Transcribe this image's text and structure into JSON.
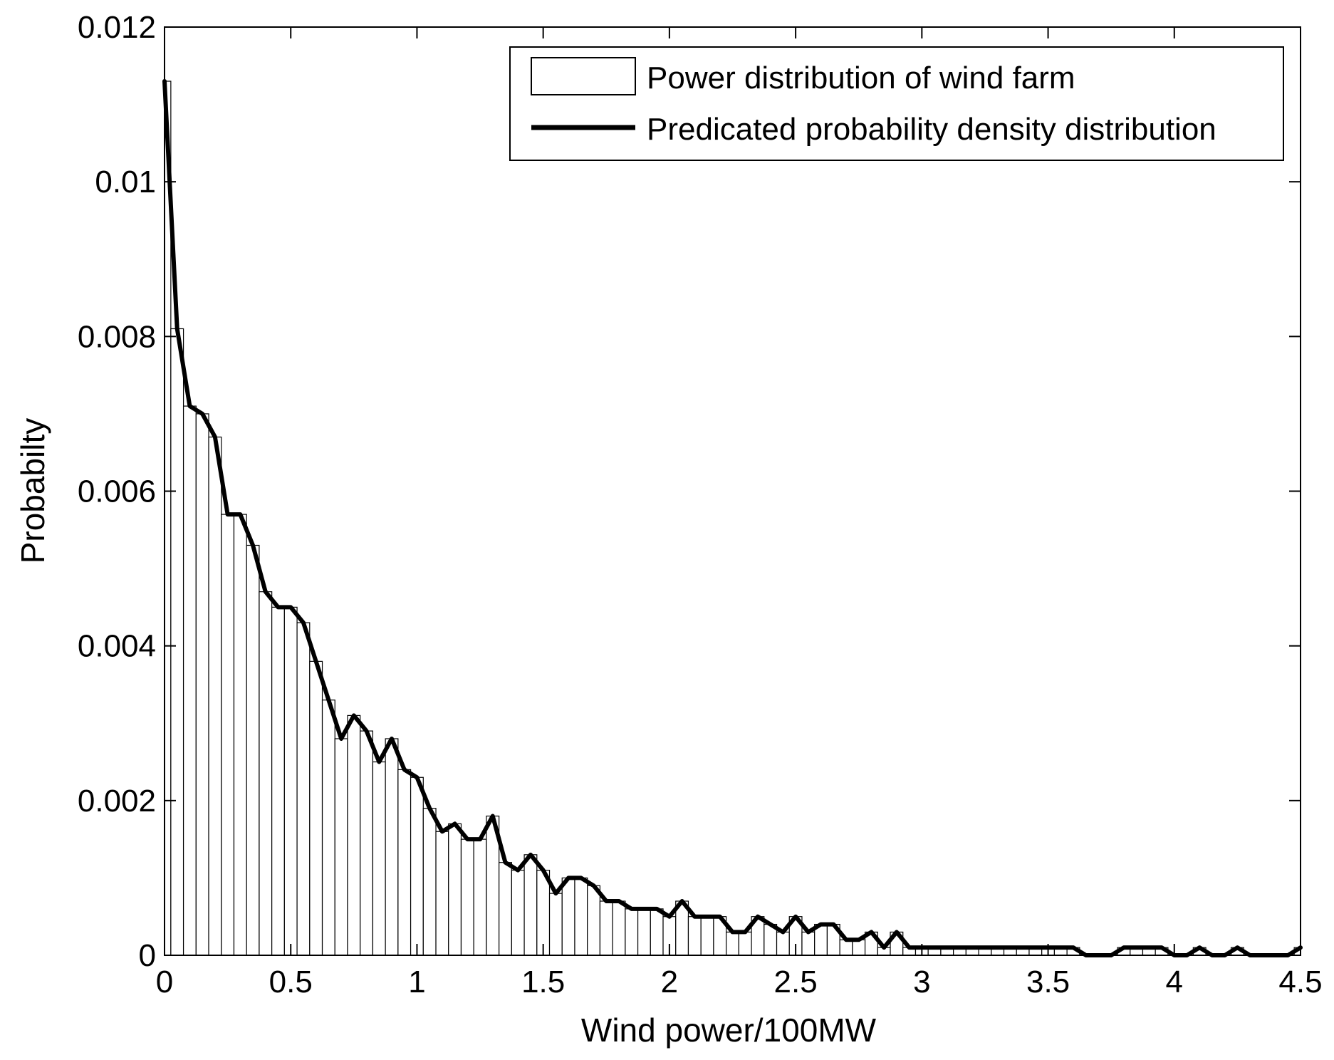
{
  "chart_data": {
    "type": "bar",
    "xlabel": "Wind power/100MW",
    "ylabel": "Probabilty",
    "xlim": [
      0,
      4.5
    ],
    "ylim": [
      0,
      0.012
    ],
    "grid": false,
    "legend_position": "top-right",
    "x_ticks": [
      {
        "value": 0,
        "label": "0"
      },
      {
        "value": 0.5,
        "label": "0.5"
      },
      {
        "value": 1,
        "label": "1"
      },
      {
        "value": 1.5,
        "label": "1.5"
      },
      {
        "value": 2,
        "label": "2"
      },
      {
        "value": 2.5,
        "label": "2.5"
      },
      {
        "value": 3,
        "label": "3"
      },
      {
        "value": 3.5,
        "label": "3.5"
      },
      {
        "value": 4,
        "label": "4"
      },
      {
        "value": 4.5,
        "label": "4.5"
      }
    ],
    "y_ticks": [
      {
        "value": 0,
        "label": "0"
      },
      {
        "value": 0.002,
        "label": "0.002"
      },
      {
        "value": 0.004,
        "label": "0.004"
      },
      {
        "value": 0.006,
        "label": "0.006"
      },
      {
        "value": 0.008,
        "label": "0.008"
      },
      {
        "value": 0.01,
        "label": "0.01"
      },
      {
        "value": 0.012,
        "label": "0.012"
      }
    ],
    "bar_width": 0.05,
    "series": [
      {
        "name": "Power distribution of wind farm",
        "type": "bar",
        "color": "#000000",
        "x": [
          0,
          0.05,
          0.1,
          0.15,
          0.2,
          0.25,
          0.3,
          0.35,
          0.4,
          0.45,
          0.5,
          0.55,
          0.6,
          0.65,
          0.7,
          0.75,
          0.8,
          0.85,
          0.9,
          0.95,
          1.0,
          1.05,
          1.1,
          1.15,
          1.2,
          1.25,
          1.3,
          1.35,
          1.4,
          1.45,
          1.5,
          1.55,
          1.6,
          1.65,
          1.7,
          1.75,
          1.8,
          1.85,
          1.9,
          1.95,
          2.0,
          2.05,
          2.1,
          2.15,
          2.2,
          2.25,
          2.3,
          2.35,
          2.4,
          2.45,
          2.5,
          2.55,
          2.6,
          2.65,
          2.7,
          2.75,
          2.8,
          2.85,
          2.9,
          2.95,
          3.0,
          3.05,
          3.1,
          3.15,
          3.2,
          3.25,
          3.3,
          3.35,
          3.4,
          3.45,
          3.5,
          3.55,
          3.6,
          3.65,
          3.7,
          3.75,
          3.8,
          3.85,
          3.9,
          3.95,
          4.0,
          4.05,
          4.1,
          4.15,
          4.2,
          4.25,
          4.3,
          4.35,
          4.4,
          4.45,
          4.5
        ],
        "values": [
          0.0113,
          0.0081,
          0.0071,
          0.007,
          0.0067,
          0.0057,
          0.0057,
          0.0053,
          0.0047,
          0.0045,
          0.0045,
          0.0043,
          0.0038,
          0.0033,
          0.0028,
          0.0031,
          0.0029,
          0.0025,
          0.0028,
          0.0024,
          0.0023,
          0.0019,
          0.0016,
          0.0017,
          0.0015,
          0.0015,
          0.0018,
          0.0012,
          0.0011,
          0.0013,
          0.0011,
          0.0008,
          0.001,
          0.001,
          0.0009,
          0.0007,
          0.0007,
          0.0006,
          0.0006,
          0.0006,
          0.0005,
          0.0007,
          0.0005,
          0.0005,
          0.0005,
          0.0003,
          0.0003,
          0.0005,
          0.0004,
          0.0003,
          0.0005,
          0.0003,
          0.0004,
          0.0004,
          0.0002,
          0.0002,
          0.0003,
          0.0001,
          0.0003,
          0.0001,
          0.0001,
          0.0001,
          0.0001,
          0.0001,
          0.0001,
          0.0001,
          0.0001,
          0.0001,
          0.0001,
          0.0001,
          0.0001,
          0.0001,
          0.0001,
          0.0,
          0.0,
          0.0,
          0.0001,
          0.0001,
          0.0001,
          0.0001,
          0.0,
          0.0,
          0.0001,
          0.0,
          0.0,
          0.0001,
          0.0,
          0.0,
          0.0,
          0.0,
          0.0001
        ]
      },
      {
        "name": "Predicated probability density distribution",
        "type": "line",
        "color": "#000000",
        "x": [
          0,
          0.05,
          0.1,
          0.15,
          0.2,
          0.25,
          0.3,
          0.35,
          0.4,
          0.45,
          0.5,
          0.55,
          0.6,
          0.65,
          0.7,
          0.75,
          0.8,
          0.85,
          0.9,
          0.95,
          1.0,
          1.05,
          1.1,
          1.15,
          1.2,
          1.25,
          1.3,
          1.35,
          1.4,
          1.45,
          1.5,
          1.55,
          1.6,
          1.65,
          1.7,
          1.75,
          1.8,
          1.85,
          1.9,
          1.95,
          2.0,
          2.05,
          2.1,
          2.15,
          2.2,
          2.25,
          2.3,
          2.35,
          2.4,
          2.45,
          2.5,
          2.55,
          2.6,
          2.65,
          2.7,
          2.75,
          2.8,
          2.85,
          2.9,
          2.95,
          3.0,
          3.05,
          3.1,
          3.15,
          3.2,
          3.25,
          3.3,
          3.35,
          3.4,
          3.45,
          3.5,
          3.55,
          3.6,
          3.65,
          3.7,
          3.75,
          3.8,
          3.85,
          3.9,
          3.95,
          4.0,
          4.05,
          4.1,
          4.15,
          4.2,
          4.25,
          4.3,
          4.35,
          4.4,
          4.45,
          4.5
        ],
        "values": [
          0.0113,
          0.0081,
          0.0071,
          0.007,
          0.0067,
          0.0057,
          0.0057,
          0.0053,
          0.0047,
          0.0045,
          0.0045,
          0.0043,
          0.0038,
          0.0033,
          0.0028,
          0.0031,
          0.0029,
          0.0025,
          0.0028,
          0.0024,
          0.0023,
          0.0019,
          0.0016,
          0.0017,
          0.0015,
          0.0015,
          0.0018,
          0.0012,
          0.0011,
          0.0013,
          0.0011,
          0.0008,
          0.001,
          0.001,
          0.0009,
          0.0007,
          0.0007,
          0.0006,
          0.0006,
          0.0006,
          0.0005,
          0.0007,
          0.0005,
          0.0005,
          0.0005,
          0.0003,
          0.0003,
          0.0005,
          0.0004,
          0.0003,
          0.0005,
          0.0003,
          0.0004,
          0.0004,
          0.0002,
          0.0002,
          0.0003,
          0.0001,
          0.0003,
          0.0001,
          0.0001,
          0.0001,
          0.0001,
          0.0001,
          0.0001,
          0.0001,
          0.0001,
          0.0001,
          0.0001,
          0.0001,
          0.0001,
          0.0001,
          0.0001,
          0.0,
          0.0,
          0.0,
          0.0001,
          0.0001,
          0.0001,
          0.0001,
          0.0,
          0.0,
          0.0001,
          0.0,
          0.0,
          0.0001,
          0.0,
          0.0,
          0.0,
          0.0,
          0.0001
        ]
      }
    ]
  }
}
